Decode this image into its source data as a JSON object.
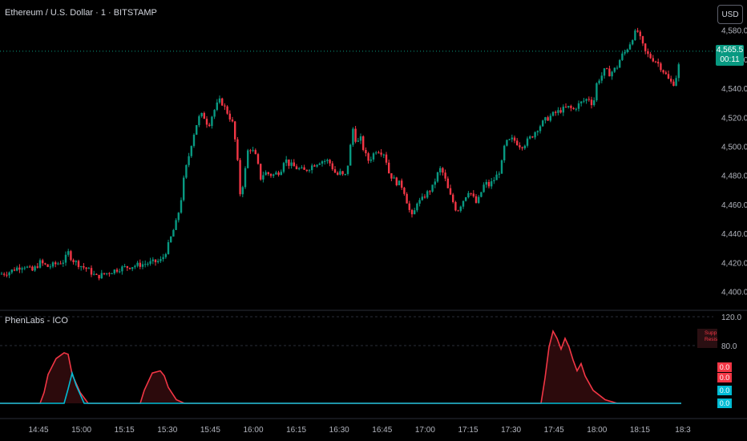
{
  "header": {
    "title": "Ethereum / U.S. Dollar · 1 · BITSTAMP",
    "currency_button": "USD"
  },
  "price_tag": {
    "price": "4,565.5",
    "countdown": "00:11"
  },
  "indicator": {
    "title": "PhenLabs - ICO",
    "legend": [
      "Supp",
      "Resist"
    ],
    "values": [
      "0.0",
      "0.0",
      "0.0",
      "0.0"
    ]
  },
  "colors": {
    "up": "#089981",
    "down": "#f23645",
    "cyan": "#00bcd4",
    "background": "#000000"
  },
  "chart_data": [
    {
      "type": "candlestick",
      "title": "Ethereum / U.S. Dollar · 1 · BITSTAMP",
      "x_tick_labels": [
        "14:45",
        "15:00",
        "15:15",
        "15:30",
        "15:45",
        "16:00",
        "16:15",
        "16:30",
        "16:45",
        "17:00",
        "17:15",
        "17:30",
        "17:45",
        "18:00",
        "18:15",
        "18:3"
      ],
      "y_tick_labels": [
        "4,400.0",
        "4,420.0",
        "4,440.0",
        "4,460.0",
        "4,480.0",
        "4,500.0",
        "4,520.0",
        "4,540.0",
        "4,560.0",
        "4,580.0"
      ],
      "ylim": [
        4392,
        4587
      ],
      "last_price": 4565.5,
      "close_path": [
        [
          0,
          4412
        ],
        [
          10,
          4413
        ],
        [
          20,
          4416
        ],
        [
          30,
          4418
        ],
        [
          40,
          4414
        ],
        [
          50,
          4420
        ],
        [
          60,
          4417
        ],
        [
          70,
          4419
        ],
        [
          80,
          4421
        ],
        [
          85,
          4427
        ],
        [
          90,
          4422
        ],
        [
          100,
          4418
        ],
        [
          110,
          4415
        ],
        [
          120,
          4410
        ],
        [
          130,
          4412
        ],
        [
          140,
          4414
        ],
        [
          150,
          4416
        ],
        [
          160,
          4417
        ],
        [
          170,
          4418
        ],
        [
          180,
          4419
        ],
        [
          190,
          4420
        ],
        [
          200,
          4421
        ],
        [
          205,
          4425
        ],
        [
          210,
          4432
        ],
        [
          215,
          4440
        ],
        [
          220,
          4448
        ],
        [
          225,
          4460
        ],
        [
          230,
          4480
        ],
        [
          235,
          4492
        ],
        [
          240,
          4505
        ],
        [
          245,
          4515
        ],
        [
          250,
          4522
        ],
        [
          255,
          4520
        ],
        [
          260,
          4514
        ],
        [
          265,
          4522
        ],
        [
          270,
          4528
        ],
        [
          275,
          4532
        ],
        [
          280,
          4527
        ],
        [
          285,
          4522
        ],
        [
          290,
          4516
        ],
        [
          295,
          4498
        ],
        [
          300,
          4465
        ],
        [
          305,
          4480
        ],
        [
          310,
          4500
        ],
        [
          315,
          4497
        ],
        [
          320,
          4492
        ],
        [
          325,
          4478
        ],
        [
          330,
          4482
        ],
        [
          340,
          4480
        ],
        [
          350,
          4483
        ],
        [
          355,
          4492
        ],
        [
          360,
          4488
        ],
        [
          370,
          4485
        ],
        [
          380,
          4483
        ],
        [
          390,
          4487
        ],
        [
          400,
          4490
        ],
        [
          410,
          4490
        ],
        [
          420,
          4480
        ],
        [
          425,
          4482
        ],
        [
          430,
          4478
        ],
        [
          435,
          4490
        ],
        [
          440,
          4513
        ],
        [
          445,
          4502
        ],
        [
          450,
          4505
        ],
        [
          455,
          4495
        ],
        [
          460,
          4490
        ],
        [
          470,
          4498
        ],
        [
          480,
          4495
        ],
        [
          485,
          4482
        ],
        [
          490,
          4478
        ],
        [
          495,
          4475
        ],
        [
          500,
          4474
        ],
        [
          505,
          4468
        ],
        [
          510,
          4457
        ],
        [
          515,
          4450
        ],
        [
          520,
          4462
        ],
        [
          525,
          4462
        ],
        [
          530,
          4466
        ],
        [
          540,
          4472
        ],
        [
          545,
          4480
        ],
        [
          550,
          4485
        ],
        [
          555,
          4478
        ],
        [
          560,
          4468
        ],
        [
          565,
          4462
        ],
        [
          570,
          4455
        ],
        [
          575,
          4460
        ],
        [
          580,
          4465
        ],
        [
          585,
          4470
        ],
        [
          590,
          4465
        ],
        [
          595,
          4460
        ],
        [
          600,
          4468
        ],
        [
          605,
          4475
        ],
        [
          610,
          4473
        ],
        [
          615,
          4476
        ],
        [
          620,
          4480
        ],
        [
          625,
          4485
        ],
        [
          630,
          4502
        ],
        [
          640,
          4505
        ],
        [
          650,
          4500
        ],
        [
          655,
          4502
        ],
        [
          660,
          4505
        ],
        [
          665,
          4508
        ],
        [
          670,
          4512
        ],
        [
          680,
          4518
        ],
        [
          690,
          4522
        ],
        [
          700,
          4525
        ],
        [
          710,
          4527
        ],
        [
          715,
          4525
        ],
        [
          720,
          4528
        ],
        [
          725,
          4530
        ],
        [
          730,
          4532
        ],
        [
          735,
          4533
        ],
        [
          740,
          4528
        ],
        [
          745,
          4545
        ],
        [
          750,
          4548
        ],
        [
          755,
          4553
        ],
        [
          760,
          4550
        ],
        [
          765,
          4552
        ],
        [
          770,
          4555
        ],
        [
          775,
          4562
        ],
        [
          780,
          4565
        ],
        [
          785,
          4570
        ],
        [
          790,
          4576
        ],
        [
          795,
          4580
        ],
        [
          800,
          4572
        ],
        [
          805,
          4565
        ],
        [
          810,
          4562
        ],
        [
          815,
          4560
        ],
        [
          820,
          4558
        ],
        [
          825,
          4554
        ],
        [
          830,
          4550
        ],
        [
          835,
          4545
        ],
        [
          840,
          4543
        ],
        [
          845,
          4550
        ],
        [
          850,
          4565.5
        ]
      ]
    },
    {
      "type": "line",
      "title": "PhenLabs - ICO",
      "y_tick_labels": [
        "120.0",
        "80.0"
      ],
      "ylim": [
        0,
        120
      ],
      "series": [
        {
          "color": "#f23645",
          "points": [
            [
              0,
              0
            ],
            [
              50,
              0
            ],
            [
              55,
              15
            ],
            [
              60,
              40
            ],
            [
              70,
              62
            ],
            [
              80,
              70
            ],
            [
              85,
              68
            ],
            [
              90,
              40
            ],
            [
              100,
              15
            ],
            [
              110,
              0
            ],
            [
              175,
              0
            ],
            [
              180,
              18
            ],
            [
              190,
              42
            ],
            [
              200,
              45
            ],
            [
              205,
              38
            ],
            [
              210,
              22
            ],
            [
              220,
              5
            ],
            [
              230,
              0
            ],
            [
              675,
              0
            ],
            [
              680,
              35
            ],
            [
              685,
              78
            ],
            [
              690,
              100
            ],
            [
              695,
              90
            ],
            [
              700,
              75
            ],
            [
              705,
              90
            ],
            [
              710,
              78
            ],
            [
              715,
              60
            ],
            [
              720,
              45
            ],
            [
              725,
              55
            ],
            [
              730,
              38
            ],
            [
              740,
              18
            ],
            [
              755,
              5
            ],
            [
              770,
              0
            ],
            [
              850,
              0
            ]
          ]
        },
        {
          "color": "#00bcd4",
          "points": [
            [
              0,
              0
            ],
            [
              80,
              0
            ],
            [
              85,
              20
            ],
            [
              90,
              42
            ],
            [
              95,
              25
            ],
            [
              105,
              0
            ],
            [
              850,
              0
            ]
          ]
        }
      ]
    }
  ]
}
